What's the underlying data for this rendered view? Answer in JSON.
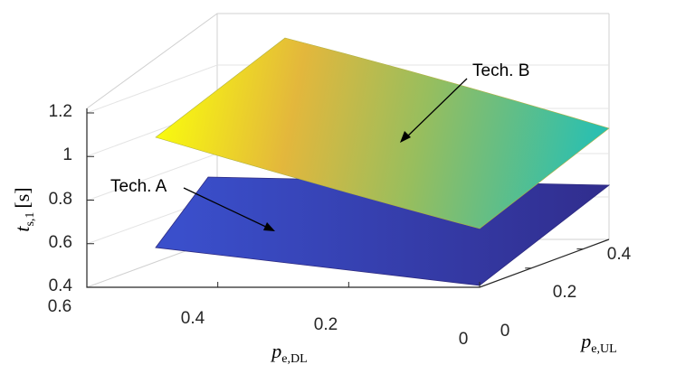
{
  "chart_data": {
    "type": "surface3d",
    "axes": {
      "x": {
        "name": "p",
        "sub": "e,DL",
        "ticks": [
          "0.6",
          "0.4",
          "0.2",
          "0"
        ],
        "range": [
          0,
          0.6
        ]
      },
      "y": {
        "name": "p",
        "sub": "e,UL",
        "ticks": [
          "0",
          "0.2",
          "0.4"
        ],
        "range": [
          0,
          0.5
        ]
      },
      "z": {
        "name": "t",
        "sub": "s,1",
        "unit": "[s]",
        "ticks": [
          "0.4",
          "0.6",
          "0.8",
          "1",
          "1.2"
        ],
        "range": [
          0.4,
          1.2
        ]
      }
    },
    "grid": true,
    "colormap": "parula",
    "surfaces": [
      {
        "name": "Tech. A",
        "corners": {
          "x0.5_y0": 0.62,
          "x0_y0": 0.42,
          "x0.5_y0.5": 0.82,
          "x0_y0.5": 0.85
        }
      },
      {
        "name": "Tech. B",
        "corners": {
          "x0.5_y0": 1.05,
          "x0_y0": 0.62,
          "x0.5_y0.5": 1.12,
          "x0_y0.5": 1.05
        }
      }
    ],
    "annotations": [
      {
        "label": "Tech. A",
        "target": "Tech. A surface"
      },
      {
        "label": "Tech. B",
        "target": "Tech. B surface"
      }
    ]
  }
}
